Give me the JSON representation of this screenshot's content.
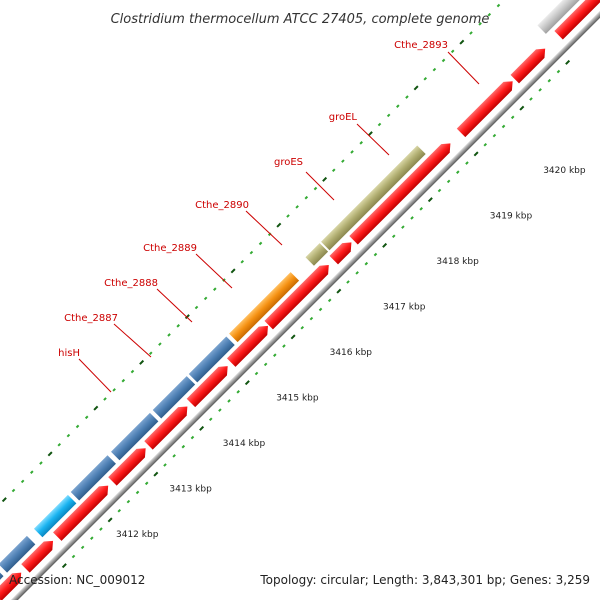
{
  "title": "Clostridium thermocellum ATCC 27405, complete genome",
  "footer": {
    "accession": "Accession: NC_009012",
    "topology": "Topology: circular; Length: 3,843,301 bp; Genes: 3,259"
  },
  "colors": {
    "label": "#cc0000",
    "cds": "#ff1a1a",
    "backbone": "#999999",
    "blue_gene": "#4d7fb3",
    "cyan_gene": "#19b3f0",
    "orange_gene": "#f59011",
    "olive_gene": "#b0ad70",
    "grey_gene": "#c8c8c8",
    "tick_light": "#33aa33",
    "tick_dark": "#115511"
  },
  "kbp_labels": [
    "3412 kbp",
    "3413 kbp",
    "3414 kbp",
    "3415 kbp",
    "3416 kbp",
    "3417 kbp",
    "3418 kbp",
    "3419 kbp",
    "3420 kbp"
  ],
  "gene_labels": [
    "hisH",
    "Cthe_2887",
    "Cthe_2888",
    "Cthe_2889",
    "Cthe_2890",
    "groES",
    "groEL",
    "Cthe_2893"
  ]
}
